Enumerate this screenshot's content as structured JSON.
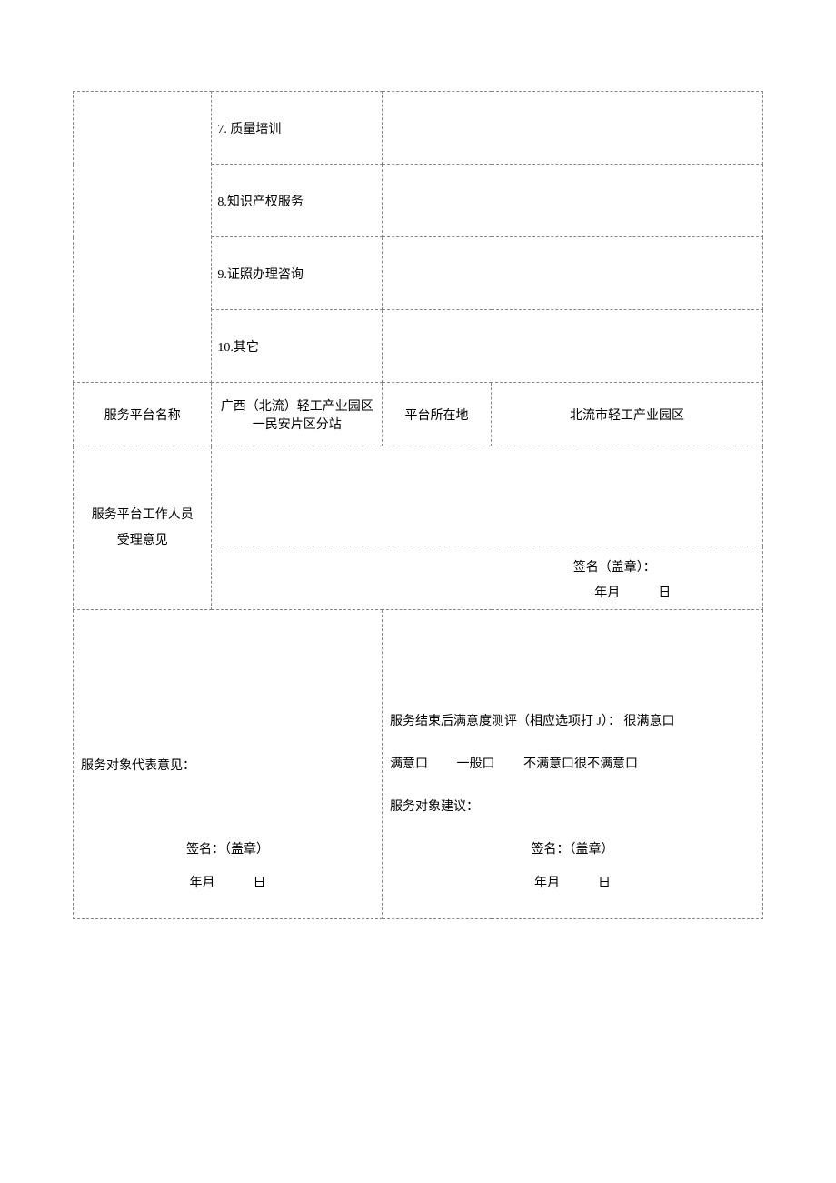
{
  "items": {
    "row7": "7. 质量培训",
    "row8": "8.知识产权服务",
    "row9": "9.证照办理咨询",
    "row10": "10.其它"
  },
  "platform": {
    "name_label": "服务平台名称",
    "name_value": "广西（北流）轻工产业园区一民安片区分站",
    "loc_label": "平台所在地",
    "loc_value": "北流市轻工产业园区"
  },
  "staff": {
    "label_line1": "服务平台工作人员",
    "label_line2": "受理意见",
    "sign": "签名（盖章）：",
    "date": "年月　　　日"
  },
  "feedback": {
    "left_label": "服务对象代表意见：",
    "survey_title": "服务结束后满意度测评（相应选项打 J）：",
    "opt1": "很满意口",
    "opt2": "满意口",
    "opt3": "一般口",
    "opt4": "不满意口很不满意口",
    "suggestion": "服务对象建议：",
    "sign_left": "签名：（盖章）",
    "date_left": "年月　　　日",
    "sign_right": "签名：（盖章）",
    "date_right": "年月　　　日"
  }
}
